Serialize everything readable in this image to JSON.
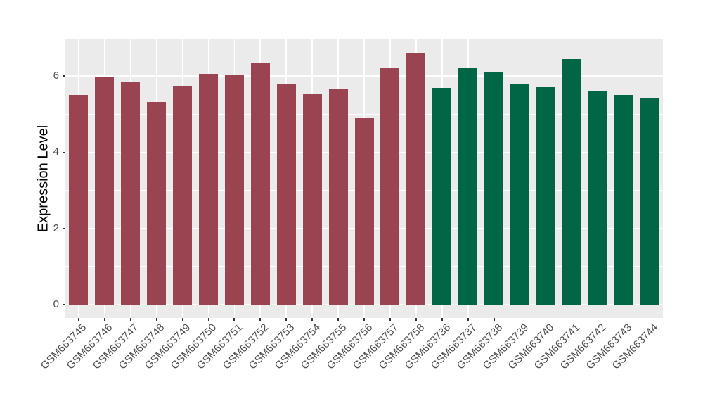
{
  "chart_data": {
    "type": "bar",
    "title": "",
    "xlabel": "",
    "ylabel": "Expression Level",
    "categories": [
      "GSM663745",
      "GSM663746",
      "GSM663747",
      "GSM663748",
      "GSM663749",
      "GSM663750",
      "GSM663751",
      "GSM663752",
      "GSM663753",
      "GSM663754",
      "GSM663755",
      "GSM663756",
      "GSM663757",
      "GSM663758",
      "GSM663736",
      "GSM663737",
      "GSM663738",
      "GSM663739",
      "GSM663740",
      "GSM663741",
      "GSM663742",
      "GSM663743",
      "GSM663744"
    ],
    "values": [
      5.51,
      5.99,
      5.83,
      5.31,
      5.75,
      6.06,
      6.01,
      6.34,
      5.77,
      5.54,
      5.65,
      4.89,
      6.23,
      6.61,
      5.69,
      6.22,
      6.1,
      5.8,
      5.7,
      6.44,
      5.61,
      5.51,
      5.41
    ],
    "bar_groups": [
      {
        "name": "group-663745-663758",
        "color": "#9A4351",
        "start": 0,
        "count": 14
      },
      {
        "name": "group-663736-663744",
        "color": "#006645",
        "start": 14,
        "count": 9
      }
    ],
    "ylim": [
      0,
      6.95
    ],
    "yticks_major": [
      0,
      2,
      4,
      6
    ],
    "yticks_minor": [
      1,
      3,
      5,
      7
    ],
    "grid": "on",
    "legend": "none",
    "colors": {
      "panel_bg": "#EBEBEB",
      "grid": "#FFFFFF",
      "tick": "#333333",
      "axis_text": "#4D4D4D",
      "axis_title": "#000000",
      "page_bg": "#FFFFFF"
    }
  }
}
